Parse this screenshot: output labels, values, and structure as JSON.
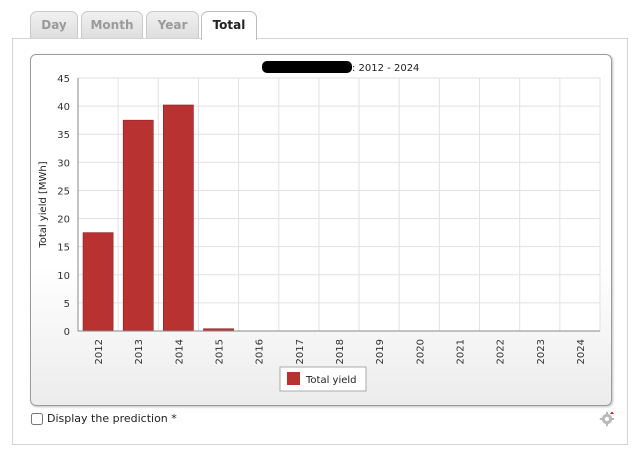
{
  "tabs": [
    {
      "label": "Day",
      "active": false
    },
    {
      "label": "Month",
      "active": false
    },
    {
      "label": "Year",
      "active": false
    },
    {
      "label": "Total",
      "active": true
    }
  ],
  "chart_data": {
    "type": "bar",
    "title_visible_suffix": ": 2012 - 2024",
    "categories": [
      "2012",
      "2013",
      "2014",
      "2015",
      "2016",
      "2017",
      "2018",
      "2019",
      "2020",
      "2021",
      "2022",
      "2023",
      "2024"
    ],
    "series": [
      {
        "name": "Total yield",
        "color": "#b83232",
        "values": [
          17.5,
          37.5,
          40.2,
          0.4,
          0,
          0,
          0,
          0,
          0,
          0,
          0,
          0,
          0
        ]
      }
    ],
    "ylabel": "Total yield [MWh]",
    "xlabel": "",
    "ylim": [
      0,
      45
    ],
    "yticks": [
      0,
      5,
      10,
      15,
      20,
      25,
      30,
      35,
      40,
      45
    ],
    "grid": true,
    "legend_placement": "bottom-center"
  },
  "prediction": {
    "label": "Display the prediction *",
    "checked": false
  },
  "icons": {
    "settings": "gear-icon"
  }
}
